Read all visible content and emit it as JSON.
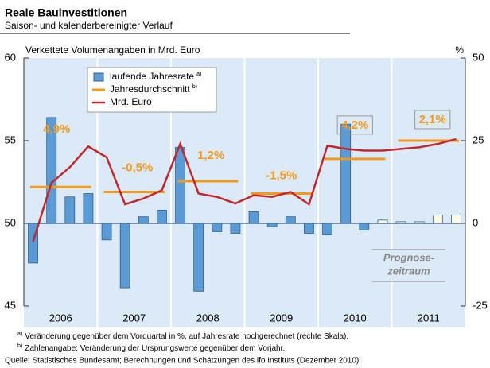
{
  "chart_data": {
    "type": "bar-line",
    "title": "Reale Bauinvestitionen",
    "subtitle": "Saison- und kalenderbereinigter Verlauf",
    "y_label": "Verkettete Volumenangaben in Mrd. Euro",
    "y2_label": "%",
    "years": [
      "2006",
      "2007",
      "2008",
      "2009",
      "2010",
      "2011"
    ],
    "ylim": [
      45,
      60
    ],
    "yticks": [
      45,
      50,
      55,
      60
    ],
    "y2lim": [
      -25,
      50
    ],
    "y2ticks": [
      -25,
      0,
      25,
      50
    ],
    "series": [
      {
        "name": "laufende Jahresrate",
        "note": "a)",
        "type": "bar",
        "axis": "y2",
        "color": "#5b9bd5",
        "forecast_color": "#fdfbe0",
        "forecast_start": 19,
        "values": [
          -12,
          32,
          8,
          9,
          -5,
          -19.5,
          2,
          4,
          23,
          -20.5,
          -2.5,
          -3,
          3.5,
          -1,
          2,
          -3,
          -3.5,
          30,
          -2,
          1,
          0.5,
          0.5,
          2.5,
          2.5
        ]
      },
      {
        "name": "Jahresdurchschnitt",
        "note": "b)",
        "type": "segment",
        "axis": "y",
        "color": "#f39a1e",
        "values": [
          52.2,
          51.9,
          52.55,
          51.8,
          53.9,
          55.0
        ],
        "value_labels": [
          "4,9%",
          "-0,5%",
          "1,2%",
          "-1,5%",
          "4,2%",
          "2,1%"
        ]
      },
      {
        "name": "Mrd. Euro",
        "type": "line",
        "axis": "y",
        "color": "#c0282d",
        "values": [
          48.9,
          52.45,
          53.4,
          54.65,
          54.0,
          51.15,
          51.5,
          52.0,
          54.8,
          51.8,
          51.6,
          51.2,
          51.7,
          51.6,
          51.9,
          51.15,
          54.7,
          54.5,
          54.4,
          54.4,
          54.5,
          54.6,
          54.8,
          55.1
        ]
      }
    ],
    "forecast_label": [
      "Prognose-",
      "zeitraum"
    ],
    "footnotes": [
      {
        "mark": "a)",
        "text": "Veränderung gegenüber dem Vorquartal in %, auf Jahresrate hochgerechnet (rechte Skala)."
      },
      {
        "mark": "b)",
        "text": "Zahlenangabe: Veränderung der Ursprungswerte gegenüber dem Vorjahr."
      }
    ],
    "source": "Quelle: Statistisches Bundesamt; Berechnungen und Schätzungen des ifo Instituts (Dezember 2010)."
  }
}
